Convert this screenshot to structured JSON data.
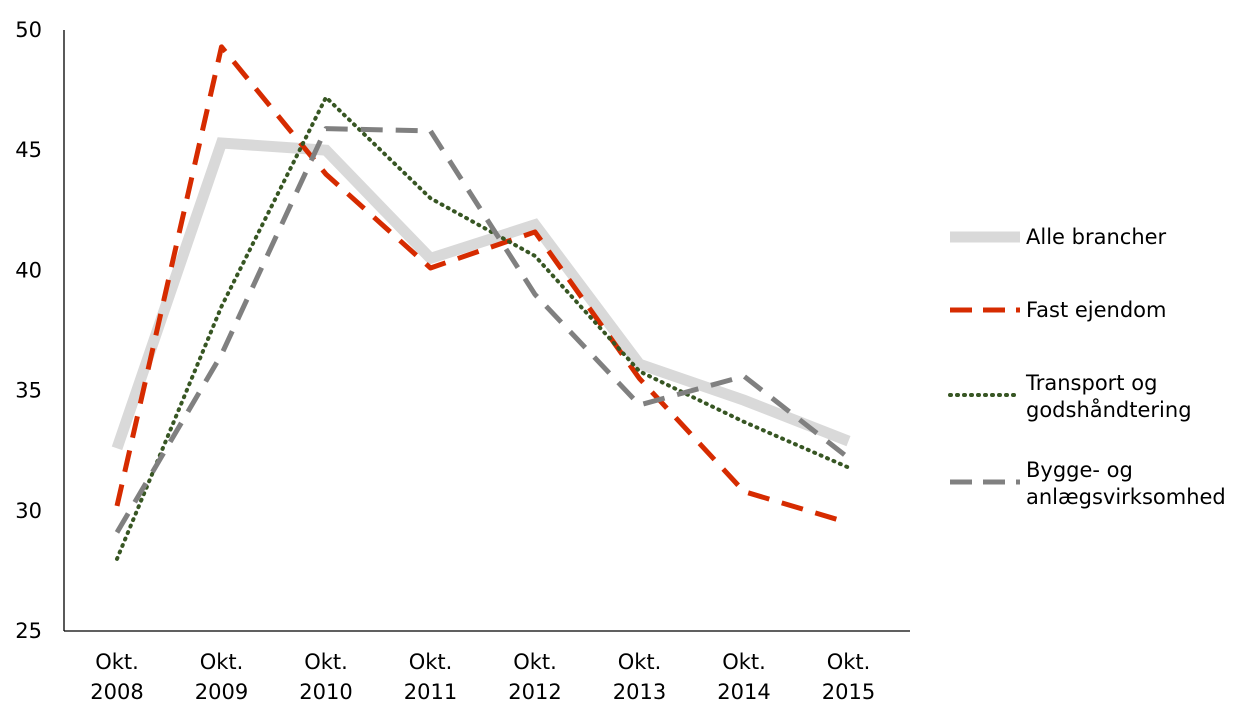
{
  "chart_data": {
    "type": "line",
    "categories": [
      [
        "Okt.",
        "2008"
      ],
      [
        "Okt.",
        "2009"
      ],
      [
        "Okt.",
        "2010"
      ],
      [
        "Okt.",
        "2011"
      ],
      [
        "Okt.",
        "2012"
      ],
      [
        "Okt.",
        "2013"
      ],
      [
        "Okt.",
        "2014"
      ],
      [
        "Okt.",
        "2015"
      ]
    ],
    "ylim": [
      25,
      50
    ],
    "yticks": [
      "25",
      "30",
      "35",
      "40",
      "45",
      "50"
    ],
    "grid": false,
    "legend_position": "right",
    "series": [
      {
        "name": [
          "Alle brancher"
        ],
        "color": "#d9d9d9",
        "style": "solid-thick",
        "values": [
          32.6,
          45.3,
          45.0,
          40.5,
          41.9,
          36.1,
          34.6,
          32.9
        ]
      },
      {
        "name": [
          "Fast ejendom"
        ],
        "color": "#d62b00",
        "style": "dashed",
        "values": [
          30.2,
          49.3,
          44.0,
          40.1,
          41.6,
          35.5,
          30.8,
          29.5
        ]
      },
      {
        "name": [
          "Transport og",
          "godshåndtering"
        ],
        "color": "#375623",
        "style": "dotted",
        "values": [
          28.0,
          38.5,
          47.2,
          43.0,
          40.6,
          35.8,
          33.7,
          31.8
        ]
      },
      {
        "name": [
          "Bygge- og",
          "anlægsvirksomhed"
        ],
        "color": "#808080",
        "style": "dashed",
        "values": [
          29.1,
          36.5,
          45.9,
          45.8,
          39.0,
          34.4,
          35.6,
          32.2
        ]
      }
    ]
  }
}
